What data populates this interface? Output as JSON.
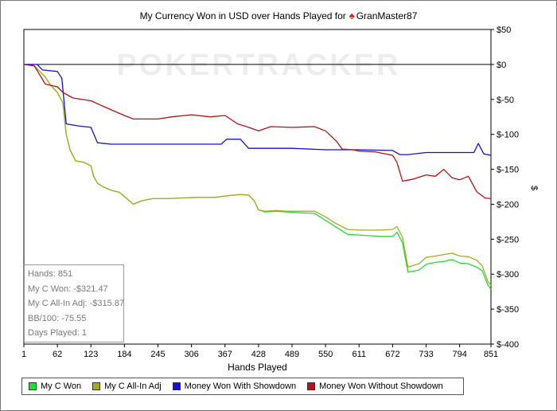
{
  "chart_data": {
    "type": "line",
    "title": "My Currency Won in USD over Hands Played for",
    "player": "GranMaster87",
    "watermark": "POKERTRACKER",
    "xlabel": "Hands Played",
    "ylabel": "$",
    "xlim": [
      1,
      851
    ],
    "ylim": [
      -400,
      50
    ],
    "x_ticks": [
      1,
      62,
      123,
      184,
      245,
      306,
      367,
      428,
      489,
      550,
      611,
      672,
      733,
      794,
      851
    ],
    "y_ticks": [
      {
        "value": 50,
        "label": "$50"
      },
      {
        "value": 0,
        "label": "$0"
      },
      {
        "value": -50,
        "label": "$-50"
      },
      {
        "value": -100,
        "label": "$-100"
      },
      {
        "value": -150,
        "label": "$-150"
      },
      {
        "value": -200,
        "label": "$-200"
      },
      {
        "value": -250,
        "label": "$-250"
      },
      {
        "value": -300,
        "label": "$-300"
      },
      {
        "value": -350,
        "label": "$-350"
      },
      {
        "value": -400,
        "label": "$-400"
      }
    ],
    "grid": false,
    "legend_position": "bottom",
    "series": [
      {
        "name": "My C Won",
        "color": "#22dd33",
        "points": [
          [
            1,
            0
          ],
          [
            20,
            -2
          ],
          [
            30,
            -10
          ],
          [
            40,
            -18
          ],
          [
            50,
            -30
          ],
          [
            62,
            -40
          ],
          [
            72,
            -55
          ],
          [
            78,
            -100
          ],
          [
            85,
            -122
          ],
          [
            95,
            -138
          ],
          [
            110,
            -140
          ],
          [
            123,
            -145
          ],
          [
            128,
            -160
          ],
          [
            135,
            -170
          ],
          [
            145,
            -175
          ],
          [
            160,
            -180
          ],
          [
            175,
            -183
          ],
          [
            190,
            -193
          ],
          [
            200,
            -200
          ],
          [
            215,
            -195
          ],
          [
            235,
            -192
          ],
          [
            260,
            -192
          ],
          [
            290,
            -191
          ],
          [
            320,
            -190
          ],
          [
            350,
            -190
          ],
          [
            370,
            -188
          ],
          [
            395,
            -186
          ],
          [
            410,
            -187
          ],
          [
            420,
            -195
          ],
          [
            428,
            -208
          ],
          [
            440,
            -211
          ],
          [
            460,
            -210
          ],
          [
            480,
            -211
          ],
          [
            500,
            -212
          ],
          [
            530,
            -213
          ],
          [
            550,
            -223
          ],
          [
            570,
            -233
          ],
          [
            590,
            -243
          ],
          [
            611,
            -244
          ],
          [
            630,
            -245
          ],
          [
            650,
            -246
          ],
          [
            672,
            -246
          ],
          [
            680,
            -240
          ],
          [
            690,
            -255
          ],
          [
            700,
            -297
          ],
          [
            720,
            -294
          ],
          [
            733,
            -286
          ],
          [
            750,
            -283
          ],
          [
            765,
            -282
          ],
          [
            780,
            -279
          ],
          [
            794,
            -284
          ],
          [
            810,
            -285
          ],
          [
            825,
            -290
          ],
          [
            835,
            -295
          ],
          [
            845,
            -315
          ],
          [
            851,
            -321.47
          ]
        ]
      },
      {
        "name": "My C All-In Adj",
        "color": "#aaaa22",
        "points": [
          [
            1,
            0
          ],
          [
            20,
            -2
          ],
          [
            30,
            -10
          ],
          [
            40,
            -18
          ],
          [
            50,
            -30
          ],
          [
            62,
            -40
          ],
          [
            72,
            -55
          ],
          [
            78,
            -100
          ],
          [
            85,
            -122
          ],
          [
            95,
            -138
          ],
          [
            110,
            -140
          ],
          [
            123,
            -145
          ],
          [
            128,
            -160
          ],
          [
            135,
            -170
          ],
          [
            145,
            -175
          ],
          [
            160,
            -180
          ],
          [
            175,
            -183
          ],
          [
            190,
            -193
          ],
          [
            200,
            -200
          ],
          [
            215,
            -195
          ],
          [
            235,
            -192
          ],
          [
            260,
            -192
          ],
          [
            290,
            -191
          ],
          [
            320,
            -190
          ],
          [
            350,
            -190
          ],
          [
            370,
            -188
          ],
          [
            395,
            -186
          ],
          [
            410,
            -187
          ],
          [
            420,
            -195
          ],
          [
            428,
            -208
          ],
          [
            440,
            -210
          ],
          [
            460,
            -209
          ],
          [
            480,
            -210
          ],
          [
            500,
            -210
          ],
          [
            530,
            -210
          ],
          [
            550,
            -218
          ],
          [
            570,
            -228
          ],
          [
            590,
            -236
          ],
          [
            611,
            -237
          ],
          [
            630,
            -237
          ],
          [
            650,
            -237
          ],
          [
            672,
            -236
          ],
          [
            680,
            -232
          ],
          [
            690,
            -247
          ],
          [
            700,
            -290
          ],
          [
            720,
            -285
          ],
          [
            733,
            -276
          ],
          [
            750,
            -274
          ],
          [
            765,
            -272
          ],
          [
            780,
            -270
          ],
          [
            794,
            -274
          ],
          [
            810,
            -275
          ],
          [
            825,
            -280
          ],
          [
            835,
            -288
          ],
          [
            845,
            -310
          ],
          [
            851,
            -315.87
          ]
        ]
      },
      {
        "name": "Money Won With Showdown",
        "color": "#1111dd",
        "points": [
          [
            1,
            0
          ],
          [
            25,
            0
          ],
          [
            35,
            -8
          ],
          [
            62,
            -10
          ],
          [
            70,
            -20
          ],
          [
            78,
            -85
          ],
          [
            100,
            -88
          ],
          [
            123,
            -90
          ],
          [
            135,
            -112
          ],
          [
            160,
            -114
          ],
          [
            245,
            -114
          ],
          [
            320,
            -114
          ],
          [
            360,
            -114
          ],
          [
            370,
            -107
          ],
          [
            395,
            -107
          ],
          [
            410,
            -120
          ],
          [
            489,
            -120
          ],
          [
            550,
            -122
          ],
          [
            611,
            -122
          ],
          [
            672,
            -123
          ],
          [
            685,
            -129
          ],
          [
            700,
            -129
          ],
          [
            733,
            -126
          ],
          [
            794,
            -126
          ],
          [
            820,
            -126
          ],
          [
            828,
            -113
          ],
          [
            838,
            -128
          ],
          [
            851,
            -130
          ]
        ]
      },
      {
        "name": "Money Won Without Showdown",
        "color": "#bb1111",
        "points": [
          [
            1,
            0
          ],
          [
            20,
            -2
          ],
          [
            30,
            -15
          ],
          [
            40,
            -28
          ],
          [
            62,
            -32
          ],
          [
            72,
            -40
          ],
          [
            90,
            -48
          ],
          [
            123,
            -52
          ],
          [
            140,
            -58
          ],
          [
            160,
            -65
          ],
          [
            184,
            -73
          ],
          [
            200,
            -78
          ],
          [
            245,
            -78
          ],
          [
            270,
            -75
          ],
          [
            306,
            -72
          ],
          [
            340,
            -75
          ],
          [
            367,
            -73
          ],
          [
            390,
            -85
          ],
          [
            410,
            -90
          ],
          [
            428,
            -95
          ],
          [
            450,
            -89
          ],
          [
            489,
            -90
          ],
          [
            530,
            -89
          ],
          [
            550,
            -95
          ],
          [
            570,
            -110
          ],
          [
            580,
            -121
          ],
          [
            600,
            -122
          ],
          [
            611,
            -124
          ],
          [
            640,
            -125
          ],
          [
            672,
            -130
          ],
          [
            680,
            -140
          ],
          [
            690,
            -167
          ],
          [
            710,
            -164
          ],
          [
            733,
            -158
          ],
          [
            750,
            -160
          ],
          [
            765,
            -150
          ],
          [
            780,
            -162
          ],
          [
            794,
            -165
          ],
          [
            810,
            -160
          ],
          [
            825,
            -182
          ],
          [
            840,
            -191
          ],
          [
            851,
            -192
          ]
        ]
      }
    ]
  },
  "stats": {
    "hands": "Hands: 851",
    "c_won": "My C Won: -$321.47",
    "allin_adj": "My C All-In Adj: -$315.87",
    "bb100": "BB/100: -75.55",
    "days": "Days Played: 1"
  }
}
